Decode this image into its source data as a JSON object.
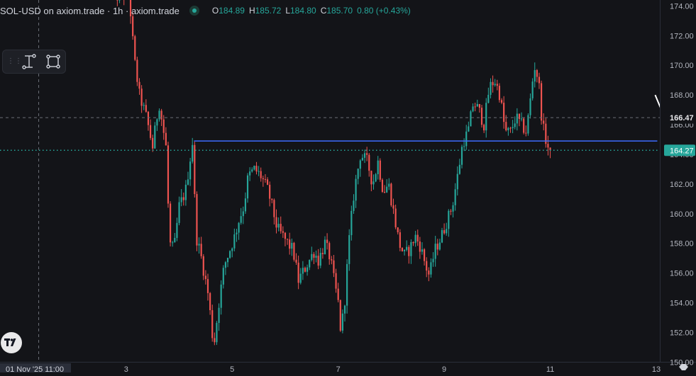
{
  "legend": {
    "symbol": "SOL-USD on axiom.trade · 1h · axiom.trade",
    "open_label": "O",
    "open": "184.89",
    "high_label": "H",
    "high": "185.72",
    "low_label": "L",
    "low": "184.80",
    "close_label": "C",
    "close": "185.70",
    "change": "0.80 (+0.43%)"
  },
  "toolbar": {
    "tools": [
      "text-cursor-icon",
      "rectangle-select-icon"
    ]
  },
  "colors": {
    "background": "#131418",
    "up": "#26a69a",
    "down": "#ef5350",
    "hline": "#3d6bff",
    "grid": "#6b6e76"
  },
  "chart_data": {
    "type": "candlestick",
    "y_axis": {
      "ticks": [
        174,
        172,
        170,
        168,
        166,
        164,
        162,
        160,
        158,
        156,
        154,
        152,
        150
      ],
      "range": [
        149.3,
        174.4
      ]
    },
    "x_axis": {
      "ticks": [
        {
          "x": 3,
          "label": "3"
        },
        {
          "x": 5,
          "label": "5"
        },
        {
          "x": 7,
          "label": "7"
        },
        {
          "x": 9,
          "label": "9"
        },
        {
          "x": 11,
          "label": "11"
        },
        {
          "x": 13,
          "label": "13"
        }
      ],
      "range": [
        0.62,
        13.75
      ],
      "crosshair_label": "01 Nov '25   11:00"
    },
    "crosshair": {
      "x": 1.35,
      "y": 166.47
    },
    "price_labels": [
      {
        "value": "166.47",
        "kind": "crosshair"
      },
      {
        "value": "164.27",
        "kind": "last-price"
      }
    ],
    "last_price": 164.27,
    "horizontal_line": {
      "price": 164.9,
      "x_start": 4.28,
      "x_end": 13.02
    },
    "annotation_stroke": {
      "from": [
        12.98,
        168.0
      ],
      "to": [
        13.12,
        166.8
      ]
    },
    "anchors": [
      [
        2.75,
        175.0
      ],
      [
        2.85,
        174.6
      ],
      [
        2.95,
        174.7
      ],
      [
        3.05,
        175.0
      ],
      [
        3.15,
        170.5
      ],
      [
        3.25,
        168.0
      ],
      [
        3.38,
        166.5
      ],
      [
        3.5,
        164.5
      ],
      [
        3.62,
        167.5
      ],
      [
        3.75,
        164.5
      ],
      [
        3.82,
        158.0
      ],
      [
        3.9,
        157.5
      ],
      [
        4.0,
        160.5
      ],
      [
        4.12,
        161.5
      ],
      [
        4.25,
        164.8
      ],
      [
        4.32,
        158.5
      ],
      [
        4.42,
        157.0
      ],
      [
        4.55,
        154.5
      ],
      [
        4.65,
        151.0
      ],
      [
        4.75,
        154.0
      ],
      [
        4.85,
        156.5
      ],
      [
        4.95,
        157.5
      ],
      [
        5.05,
        158.5
      ],
      [
        5.12,
        159.5
      ],
      [
        5.22,
        160.5
      ],
      [
        5.3,
        162.5
      ],
      [
        5.42,
        163.0
      ],
      [
        5.55,
        162.5
      ],
      [
        5.68,
        161.5
      ],
      [
        5.75,
        160.5
      ],
      [
        5.85,
        159.0
      ],
      [
        5.95,
        158.5
      ],
      [
        6.05,
        158.0
      ],
      [
        6.15,
        157.5
      ],
      [
        6.25,
        155.5
      ],
      [
        6.4,
        156.5
      ],
      [
        6.55,
        157.5
      ],
      [
        6.62,
        156.8
      ],
      [
        6.75,
        158.0
      ],
      [
        6.85,
        157.0
      ],
      [
        6.92,
        155.5
      ],
      [
        7.0,
        154.0
      ],
      [
        7.05,
        152.0
      ],
      [
        7.12,
        154.0
      ],
      [
        7.2,
        158.0
      ],
      [
        7.3,
        161.5
      ],
      [
        7.42,
        164.0
      ],
      [
        7.55,
        163.5
      ],
      [
        7.65,
        162.0
      ],
      [
        7.75,
        163.5
      ],
      [
        7.85,
        161.5
      ],
      [
        7.95,
        162.0
      ],
      [
        8.05,
        160.0
      ],
      [
        8.15,
        158.0
      ],
      [
        8.25,
        157.2
      ],
      [
        8.35,
        157.6
      ],
      [
        8.45,
        158.5
      ],
      [
        8.55,
        157.8
      ],
      [
        8.65,
        156.5
      ],
      [
        8.72,
        155.8
      ],
      [
        8.82,
        157.5
      ],
      [
        8.95,
        158.5
      ],
      [
        9.05,
        159.5
      ],
      [
        9.15,
        160.5
      ],
      [
        9.25,
        162.5
      ],
      [
        9.35,
        164.8
      ],
      [
        9.45,
        165.5
      ],
      [
        9.55,
        167.5
      ],
      [
        9.65,
        167.0
      ],
      [
        9.75,
        166.0
      ],
      [
        9.85,
        168.5
      ],
      [
        9.95,
        169.0
      ],
      [
        10.05,
        168.0
      ],
      [
        10.15,
        165.5
      ],
      [
        10.25,
        165.5
      ],
      [
        10.35,
        166.5
      ],
      [
        10.45,
        166.0
      ],
      [
        10.55,
        165.5
      ],
      [
        10.62,
        167.5
      ],
      [
        10.7,
        170.0
      ],
      [
        10.78,
        169.0
      ],
      [
        10.85,
        166.0
      ],
      [
        10.95,
        164.5
      ],
      [
        11.02,
        164.27
      ]
    ]
  }
}
